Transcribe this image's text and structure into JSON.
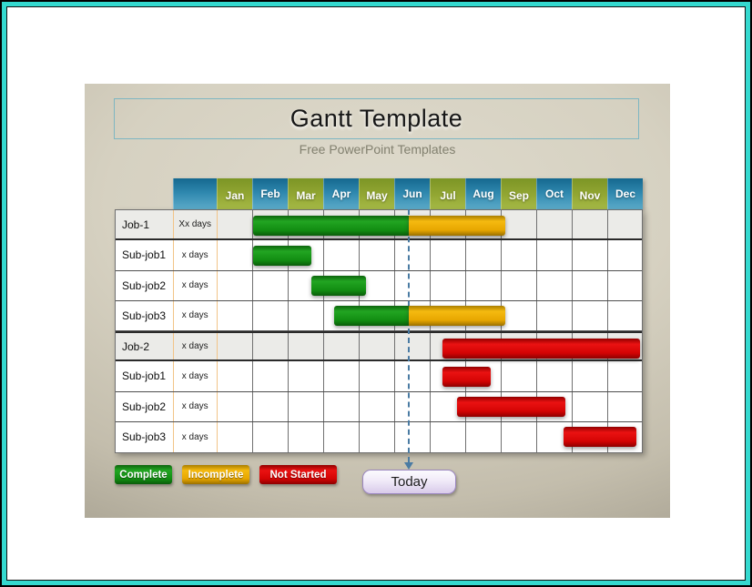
{
  "frame": {
    "border_color": "#35d9cf",
    "page_background": "#ffffff"
  },
  "slide": {
    "title": "Gantt Template",
    "subtitle": "Free PowerPoint Templates"
  },
  "chart_data": {
    "type": "bar",
    "subtype": "gantt",
    "title": "Gantt Template",
    "x_categories": [
      "Jan",
      "Feb",
      "Mar",
      "Apr",
      "May",
      "Jun",
      "Jul",
      "Aug",
      "Sep",
      "Oct",
      "Nov",
      "Dec"
    ],
    "x_unit": "months, Jan = 0 (fractional positions within year)",
    "grid": true,
    "today_marker_month": 5.4,
    "tasks": [
      {
        "label": "Job-1",
        "duration": "Xx days",
        "kind": "job",
        "segments": [
          {
            "status": "Complete",
            "start": 1.0,
            "end": 5.4
          },
          {
            "status": "Incomplete",
            "start": 5.4,
            "end": 8.1
          }
        ]
      },
      {
        "label": "Sub-job1",
        "duration": "x days",
        "kind": "sub",
        "segments": [
          {
            "status": "Complete",
            "start": 1.0,
            "end": 2.65
          }
        ]
      },
      {
        "label": "Sub-job2",
        "duration": "x days",
        "kind": "sub",
        "segments": [
          {
            "status": "Complete",
            "start": 2.65,
            "end": 4.2
          }
        ]
      },
      {
        "label": "Sub-job3",
        "duration": "x days",
        "kind": "sub",
        "segments": [
          {
            "status": "Complete",
            "start": 3.3,
            "end": 5.4
          },
          {
            "status": "Incomplete",
            "start": 5.4,
            "end": 8.1
          }
        ]
      },
      {
        "label": "Job-2",
        "duration": "x days",
        "kind": "job",
        "segments": [
          {
            "status": "Not Started",
            "start": 6.35,
            "end": 11.9
          }
        ]
      },
      {
        "label": "Sub-job1",
        "duration": "x days",
        "kind": "sub",
        "segments": [
          {
            "status": "Not Started",
            "start": 6.35,
            "end": 7.7
          }
        ]
      },
      {
        "label": "Sub-job2",
        "duration": "x days",
        "kind": "sub",
        "segments": [
          {
            "status": "Not Started",
            "start": 6.75,
            "end": 9.8
          }
        ]
      },
      {
        "label": "Sub-job3",
        "duration": "x days",
        "kind": "sub",
        "segments": [
          {
            "status": "Not Started",
            "start": 9.75,
            "end": 11.8
          }
        ]
      }
    ],
    "legend": [
      {
        "label": "Complete",
        "color": "#128d12"
      },
      {
        "label": "Incomplete",
        "color": "#e7a600"
      },
      {
        "label": "Not Started",
        "color": "#d40404"
      }
    ],
    "legend_position": "bottom-left"
  },
  "header_colors": {
    "odd_months": "#93a733",
    "even_months": "#2e87ae"
  },
  "today_button": {
    "label": "Today"
  },
  "today_line_color": "#4a7ba3"
}
